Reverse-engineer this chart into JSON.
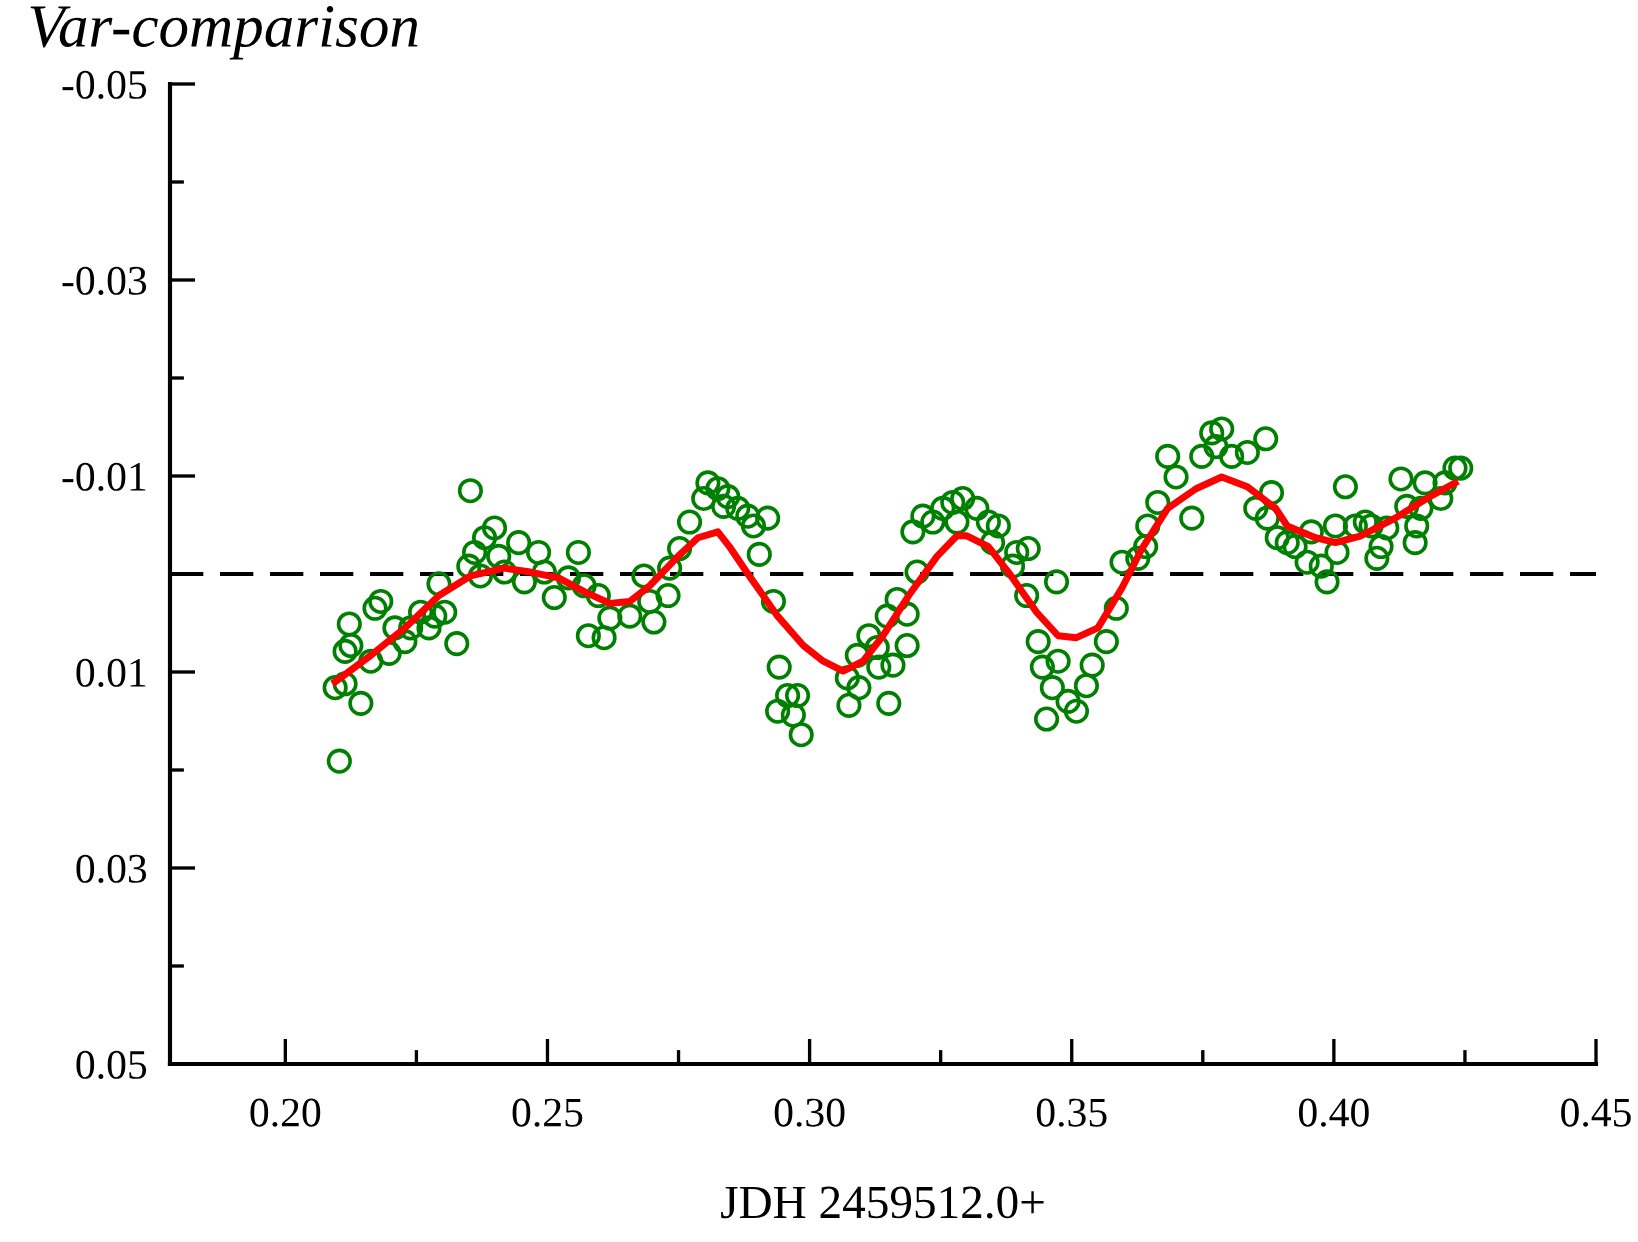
{
  "chart_data": {
    "type": "scatter",
    "ylabel": "Var-comparison",
    "xlabel": "JDH 2459512.0+",
    "xlim": [
      0.178,
      0.45
    ],
    "ylim": [
      0.05,
      -0.05
    ],
    "xticks": [
      {
        "value": 0.2,
        "label": "0.20"
      },
      {
        "value": 0.225,
        "label": null
      },
      {
        "value": 0.25,
        "label": "0.25"
      },
      {
        "value": 0.275,
        "label": null
      },
      {
        "value": 0.3,
        "label": "0.30"
      },
      {
        "value": 0.325,
        "label": null
      },
      {
        "value": 0.35,
        "label": "0.35"
      },
      {
        "value": 0.375,
        "label": null
      },
      {
        "value": 0.4,
        "label": "0.40"
      },
      {
        "value": 0.425,
        "label": null
      },
      {
        "value": 0.45,
        "label": "0.45"
      }
    ],
    "yticks": [
      {
        "value": -0.05,
        "label": "-0.05"
      },
      {
        "value": -0.04,
        "label": null
      },
      {
        "value": -0.03,
        "label": "-0.03"
      },
      {
        "value": -0.02,
        "label": null
      },
      {
        "value": -0.01,
        "label": "-0.01"
      },
      {
        "value": 0,
        "label": null
      },
      {
        "value": 0.01,
        "label": "0.01"
      },
      {
        "value": 0.02,
        "label": null
      },
      {
        "value": 0.03,
        "label": "0.03"
      },
      {
        "value": 0.04,
        "label": null
      },
      {
        "value": 0.05,
        "label": "0.05"
      }
    ],
    "grid": false,
    "ref_lines": [
      {
        "axis": "y",
        "value": 0,
        "color": "#000000",
        "line_style": "dashed"
      }
    ],
    "series": [
      {
        "color": "#008000",
        "marker": "circle",
        "x": [
          0.2103,
          0.2095,
          0.2114,
          0.2144,
          0.2114,
          0.2125,
          0.2122,
          0.2163,
          0.2171,
          0.2182,
          0.2198,
          0.2209,
          0.2228,
          0.2239,
          0.2258,
          0.2274,
          0.2285,
          0.2304,
          0.2293,
          0.2327,
          0.2353,
          0.235,
          0.2361,
          0.238,
          0.2399,
          0.2372,
          0.2407,
          0.2418,
          0.2445,
          0.2456,
          0.2483,
          0.2494,
          0.2513,
          0.254,
          0.2559,
          0.257,
          0.2597,
          0.2578,
          0.2608,
          0.2619,
          0.2684,
          0.2695,
          0.2657,
          0.2703,
          0.273,
          0.2733,
          0.2752,
          0.2771,
          0.2798,
          0.2806,
          0.2825,
          0.2844,
          0.2836,
          0.2863,
          0.2882,
          0.2893,
          0.292,
          0.2904,
          0.2931,
          0.2942,
          0.2958,
          0.2939,
          0.2977,
          0.2969,
          0.2984,
          0.3072,
          0.3075,
          0.3094,
          0.3091,
          0.3113,
          0.3132,
          0.3129,
          0.3151,
          0.3159,
          0.3148,
          0.3167,
          0.3186,
          0.3186,
          0.3205,
          0.3197,
          0.3216,
          0.3235,
          0.3254,
          0.3273,
          0.3281,
          0.3292,
          0.3319,
          0.3341,
          0.336,
          0.3349,
          0.3395,
          0.3417,
          0.3387,
          0.3471,
          0.3414,
          0.3436,
          0.3444,
          0.3474,
          0.3463,
          0.3493,
          0.3509,
          0.3452,
          0.3528,
          0.3539,
          0.3566,
          0.3585,
          0.3596,
          0.3626,
          0.3641,
          0.3645,
          0.3664,
          0.3683,
          0.3699,
          0.3729,
          0.3748,
          0.3775,
          0.3786,
          0.3767,
          0.3805,
          0.3835,
          0.3851,
          0.387,
          0.3881,
          0.3873,
          0.3892,
          0.3911,
          0.3926,
          0.3957,
          0.3949,
          0.3976,
          0.3987,
          0.4006,
          0.4003,
          0.4022,
          0.4041,
          0.406,
          0.4071,
          0.4082,
          0.409,
          0.4101,
          0.4128,
          0.4139,
          0.4155,
          0.4166,
          0.4174,
          0.4158,
          0.4204,
          0.4212,
          0.4231,
          0.4242
        ],
        "values": [
          0.0191,
          0.0116,
          0.0112,
          0.0132,
          0.0079,
          0.0073,
          0.0051,
          0.0089,
          0.0035,
          0.0028,
          0.0081,
          0.0055,
          0.0069,
          0.0055,
          0.0039,
          0.0055,
          0.0043,
          0.0039,
          0.001,
          0.0071,
          -0.0085,
          -0.0008,
          -0.0022,
          -0.0037,
          -0.0047,
          0.0002,
          -0.0018,
          -0.0002,
          -0.0032,
          0.0008,
          -0.0022,
          -0.0002,
          0.0024,
          0.0004,
          -0.0022,
          0.0012,
          0.0022,
          0.0063,
          0.0065,
          0.0045,
          0.0002,
          0.0028,
          0.0043,
          0.0049,
          0.0022,
          -0.0006,
          -0.0026,
          -0.0053,
          -0.0077,
          -0.0093,
          -0.0087,
          -0.0079,
          -0.0069,
          -0.0067,
          -0.0059,
          -0.0049,
          -0.0057,
          -0.002,
          0.0028,
          0.0095,
          0.0124,
          0.014,
          0.0124,
          0.0144,
          0.0164,
          0.0106,
          0.0134,
          0.0116,
          0.0083,
          0.0063,
          0.0095,
          0.0075,
          0.0132,
          0.0093,
          0.0043,
          0.0026,
          0.0041,
          0.0073,
          -0.0002,
          -0.0043,
          -0.0059,
          -0.0053,
          -0.0067,
          -0.0073,
          -0.0053,
          -0.0077,
          -0.0067,
          -0.0053,
          -0.0049,
          -0.0032,
          -0.0022,
          -0.0026,
          -0.0008,
          0.0008,
          0.0022,
          0.0069,
          0.0095,
          0.0089,
          0.0116,
          0.013,
          0.014,
          0.0148,
          0.0114,
          0.0093,
          0.0069,
          0.0035,
          -0.0012,
          -0.0016,
          -0.0028,
          -0.0049,
          -0.0073,
          -0.012,
          -0.0099,
          -0.0057,
          -0.012,
          -0.013,
          -0.0148,
          -0.0144,
          -0.012,
          -0.0124,
          -0.0067,
          -0.0138,
          -0.0083,
          -0.0057,
          -0.0037,
          -0.0032,
          -0.0028,
          -0.0043,
          -0.0012,
          -0.0008,
          0.0008,
          -0.0022,
          -0.0049,
          -0.0089,
          -0.0049,
          -0.0053,
          -0.0049,
          -0.0016,
          -0.0028,
          -0.0047,
          -0.0097,
          -0.0069,
          -0.0032,
          -0.0067,
          -0.0093,
          -0.0049,
          -0.0077,
          -0.0093,
          -0.0108,
          -0.0108
        ]
      },
      {
        "type": "line",
        "color": "#ff0000",
        "marker": "none",
        "line_style": "solid",
        "x": [
          0.2095,
          0.2163,
          0.2228,
          0.2293,
          0.2353,
          0.2418,
          0.2467,
          0.2521,
          0.257,
          0.2619,
          0.2657,
          0.2695,
          0.2749,
          0.2787,
          0.2825,
          0.2847,
          0.2885,
          0.2939,
          0.2988,
          0.3026,
          0.3064,
          0.3102,
          0.314,
          0.3189,
          0.3243,
          0.3281,
          0.33,
          0.3341,
          0.3379,
          0.3433,
          0.3474,
          0.3509,
          0.355,
          0.3596,
          0.3634,
          0.3683,
          0.3737,
          0.3786,
          0.3835,
          0.3889,
          0.3911,
          0.3965,
          0.4003,
          0.4052,
          0.4117,
          0.4177,
          0.4231
        ],
        "values": [
          0.011,
          0.0083,
          0.0055,
          0.0022,
          0.0002,
          -0.0006,
          -0.0002,
          0.0004,
          0.0018,
          0.003,
          0.0028,
          0.0012,
          -0.0018,
          -0.0037,
          -0.0043,
          -0.0028,
          0.0002,
          0.0043,
          0.0073,
          0.0089,
          0.0099,
          0.0089,
          0.0063,
          0.0022,
          -0.0018,
          -0.0039,
          -0.0039,
          -0.0028,
          -0.0002,
          0.0039,
          0.0063,
          0.0065,
          0.0055,
          0.0014,
          -0.0026,
          -0.0067,
          -0.0087,
          -0.0099,
          -0.0089,
          -0.0067,
          -0.0049,
          -0.0037,
          -0.0032,
          -0.0039,
          -0.0057,
          -0.0077,
          -0.0093
        ]
      }
    ]
  }
}
